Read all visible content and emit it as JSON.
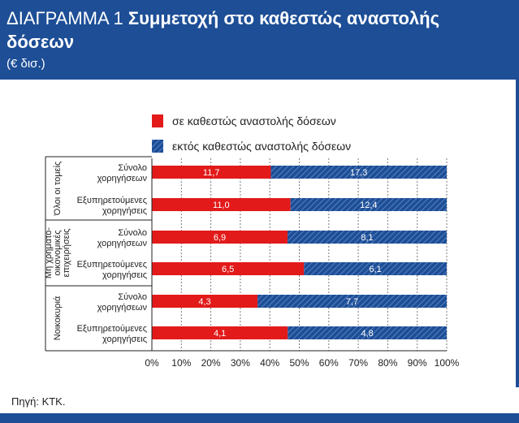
{
  "header": {
    "label": "ΔΙΑΓΡΑΜΜΑ 1",
    "title_line1": "Συμμετοχή στο καθεστώς αναστολής",
    "title_line2": "δόσεων",
    "unit": "(€ δισ.)"
  },
  "source": "Πηγή: ΚΤΚ.",
  "colors": {
    "red": "#e21a1a",
    "blue": "#1d4e96",
    "header_bg": "#1d4e96"
  },
  "chart_data": {
    "type": "bar",
    "orientation": "horizontal",
    "stacked": "percent",
    "legend_position": "top",
    "groups": [
      {
        "label": "Όλοι οι τομείς",
        "rows": [
          0,
          1
        ]
      },
      {
        "label_lines": [
          "Μη χρηματο-",
          "οικονομικές",
          "επιχειρήσεις"
        ],
        "rows": [
          2,
          3
        ]
      },
      {
        "label": "Νοικοκυριά",
        "rows": [
          4,
          5
        ]
      }
    ],
    "categories": [
      [
        "Σύνολο",
        "χορηγήσεων"
      ],
      [
        "Εξυπηρετούμενες",
        "χορηγήσεις"
      ],
      [
        "Σύνολο",
        "χορηγήσεων"
      ],
      [
        "Εξυπηρετούμενες",
        "χορηγήσεις"
      ],
      [
        "Σύνολο",
        "χορηγήσεων"
      ],
      [
        "Εξυπηρετούμενες",
        "χορηγήσεις"
      ]
    ],
    "series": [
      {
        "name": "σε καθεστώς αναστολής δόσεων",
        "color": "#e21a1a",
        "values": [
          11.7,
          11.0,
          6.9,
          6.5,
          4.3,
          4.1
        ],
        "labels": [
          "11,7",
          "11,0",
          "6,9",
          "6,5",
          "4,3",
          "4,1"
        ]
      },
      {
        "name": "εκτός καθεστώς αναστολής δόσεων",
        "color": "#1d4e96",
        "pattern": "hatched",
        "values": [
          17.3,
          12.4,
          8.1,
          6.1,
          7.7,
          4.8
        ],
        "labels": [
          "17,3",
          "12,4",
          "8,1",
          "6,1",
          "7,7",
          "4,8"
        ]
      }
    ],
    "xlim": [
      0,
      100
    ],
    "x_ticks": [
      "0%",
      "10%",
      "20%",
      "30%",
      "40%",
      "50%",
      "60%",
      "70%",
      "80%",
      "90%",
      "100%"
    ],
    "grid": "vertical"
  }
}
